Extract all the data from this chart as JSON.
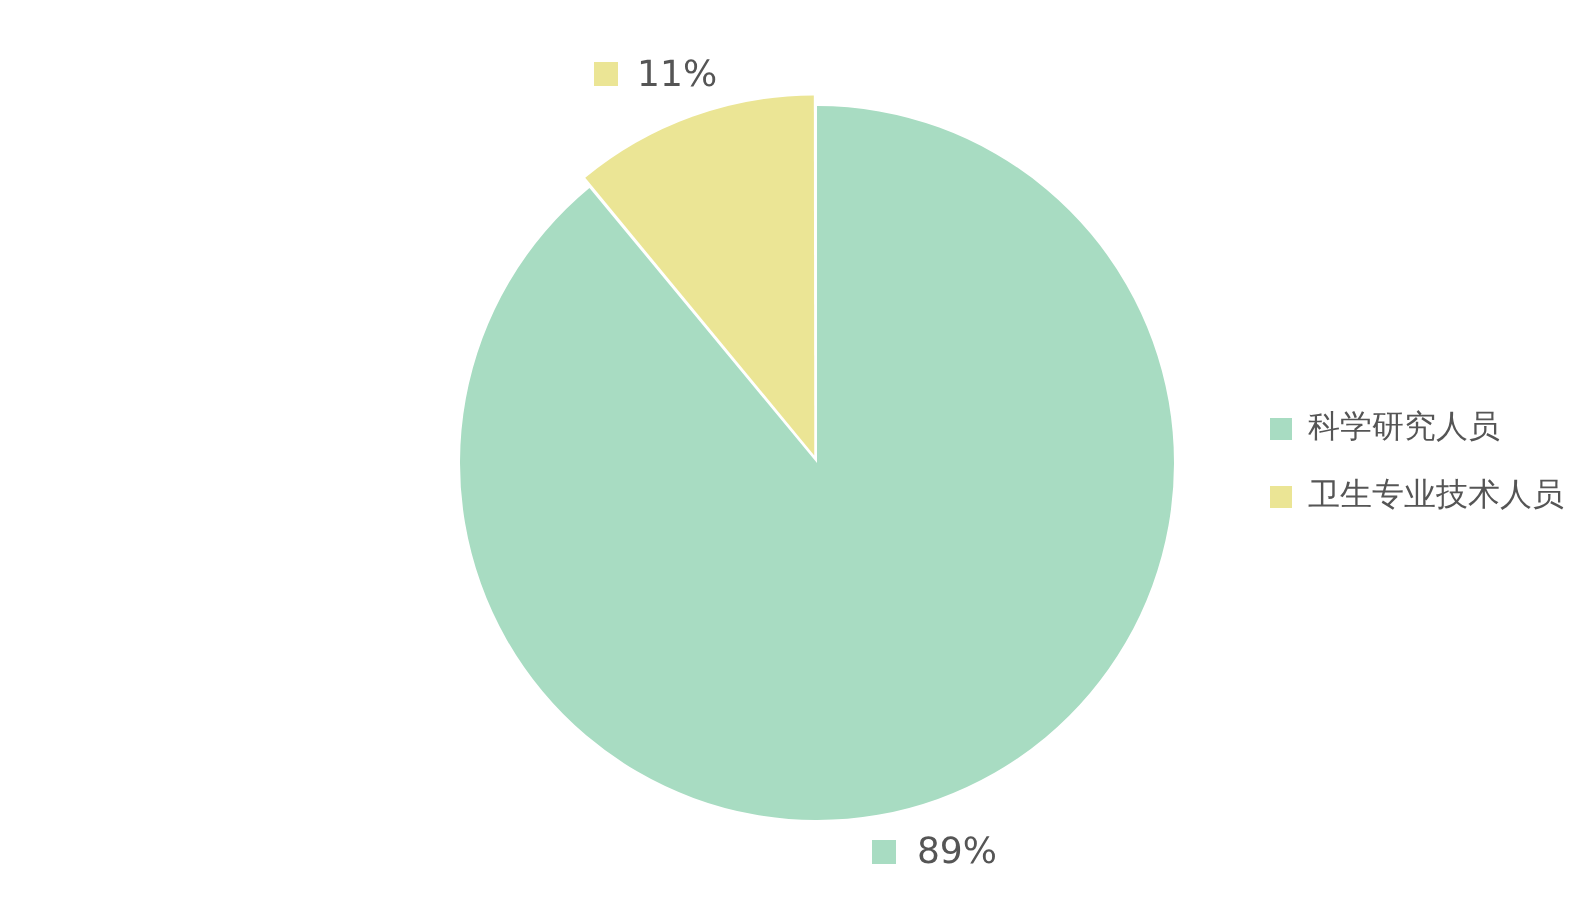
{
  "chart_data": {
    "type": "pie",
    "categories": [
      "科学研究人员",
      "卫生专业技术人员"
    ],
    "values": [
      89,
      11
    ],
    "colors": [
      "#a8dcc2",
      "#ebe595"
    ],
    "value_labels": [
      "89%",
      "11%"
    ],
    "legend": "right"
  }
}
